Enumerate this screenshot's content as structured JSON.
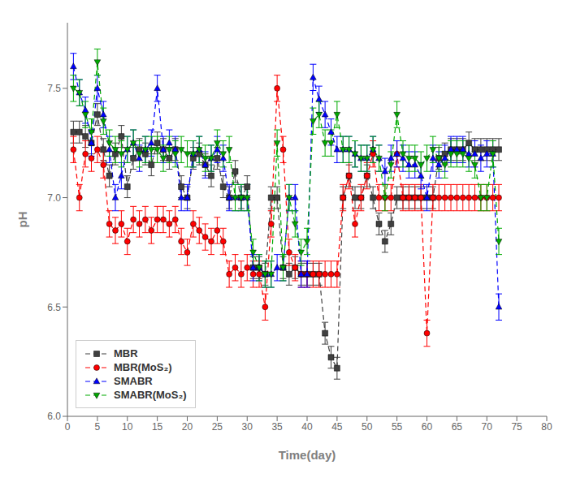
{
  "chart_data": {
    "type": "line",
    "xlabel": "Time(day)",
    "ylabel": "pH",
    "xlim": [
      0,
      80
    ],
    "ylim": [
      6.0,
      7.8
    ],
    "xticks": [
      0,
      5,
      10,
      15,
      20,
      25,
      30,
      35,
      40,
      45,
      50,
      55,
      60,
      65,
      70,
      75,
      80
    ],
    "yticks": [
      {
        "value": 6.0,
        "label": "6.0"
      },
      6.5,
      {
        "value": 7.0,
        "label": "7.0"
      },
      7.5
    ],
    "grid": false,
    "legend": "lower left",
    "x": [
      1,
      2,
      3,
      4,
      5,
      6,
      7,
      8,
      9,
      10,
      11,
      12,
      13,
      14,
      15,
      16,
      17,
      18,
      19,
      20,
      21,
      22,
      23,
      24,
      25,
      26,
      27,
      28,
      29,
      30,
      31,
      32,
      33,
      34,
      35,
      36,
      37,
      38,
      39,
      40,
      41,
      42,
      43,
      44,
      45,
      46,
      47,
      48,
      49,
      50,
      51,
      52,
      53,
      54,
      55,
      56,
      57,
      58,
      59,
      60,
      61,
      62,
      63,
      64,
      65,
      66,
      67,
      68,
      69,
      70,
      71,
      72
    ],
    "series": [
      {
        "name": "MBR",
        "color": "#404040",
        "marker": "square",
        "line_style": "dashed",
        "values": [
          7.3,
          7.3,
          7.28,
          7.25,
          7.38,
          7.22,
          7.1,
          7.2,
          7.28,
          7.05,
          7.18,
          7.22,
          7.2,
          7.15,
          7.25,
          7.22,
          7.18,
          7.22,
          7.05,
          7.0,
          7.18,
          7.2,
          7.15,
          7.1,
          7.18,
          7.05,
          7.0,
          7.12,
          7.0,
          7.05,
          6.68,
          6.68,
          6.65,
          7.0,
          7.0,
          6.68,
          6.65,
          6.68,
          6.65,
          6.65,
          6.65,
          6.65,
          6.38,
          6.27,
          6.22,
          7.0,
          7.1,
          7.0,
          7.0,
          7.1,
          7.0,
          6.88,
          6.8,
          6.88,
          7.0,
          7.0,
          7.0,
          7.0,
          7.0,
          7.0,
          7.0,
          7.18,
          7.2,
          7.22,
          7.22,
          7.22,
          7.25,
          7.22,
          7.22,
          7.22,
          7.22,
          7.22
        ],
        "yerr": [
          0.05,
          0.05,
          0.05,
          0.05,
          0.05,
          0.05,
          0.05,
          0.05,
          0.05,
          0.05,
          0.05,
          0.05,
          0.05,
          0.05,
          0.05,
          0.05,
          0.05,
          0.05,
          0.05,
          0.05,
          0.05,
          0.05,
          0.05,
          0.05,
          0.05,
          0.05,
          0.05,
          0.05,
          0.05,
          0.05,
          0.05,
          0.05,
          0.05,
          0.05,
          0.05,
          0.05,
          0.05,
          0.05,
          0.05,
          0.05,
          0.05,
          0.05,
          0.05,
          0.05,
          0.05,
          0.05,
          0.05,
          0.05,
          0.05,
          0.05,
          0.05,
          0.05,
          0.05,
          0.05,
          0.05,
          0.05,
          0.05,
          0.05,
          0.05,
          0.05,
          0.05,
          0.05,
          0.05,
          0.05,
          0.05,
          0.05,
          0.05,
          0.05,
          0.05,
          0.05,
          0.05,
          0.05
        ]
      },
      {
        "name": "MBR(MoS₂)",
        "color": "#ff0000",
        "marker": "circle",
        "line_style": "dashed",
        "values": [
          7.22,
          7.0,
          7.2,
          7.18,
          7.22,
          7.15,
          6.88,
          6.85,
          6.88,
          6.8,
          6.9,
          6.88,
          6.9,
          6.85,
          6.9,
          6.9,
          6.88,
          6.9,
          6.8,
          6.75,
          6.88,
          6.85,
          6.82,
          6.8,
          6.85,
          6.8,
          6.65,
          6.68,
          6.65,
          6.68,
          6.65,
          6.65,
          6.5,
          6.88,
          7.5,
          7.22,
          6.75,
          6.68,
          6.65,
          6.65,
          6.65,
          6.65,
          6.65,
          6.65,
          6.65,
          7.0,
          7.1,
          6.88,
          7.0,
          7.1,
          7.2,
          7.0,
          7.0,
          7.0,
          7.2,
          7.0,
          7.0,
          7.0,
          7.0,
          6.38,
          7.0,
          7.0,
          7.0,
          7.0,
          7.0,
          7.0,
          7.0,
          7.0,
          7.0,
          7.0,
          7.0,
          7.0
        ],
        "yerr": [
          0.06,
          0.06,
          0.06,
          0.06,
          0.06,
          0.06,
          0.06,
          0.06,
          0.06,
          0.06,
          0.06,
          0.06,
          0.06,
          0.06,
          0.06,
          0.06,
          0.06,
          0.06,
          0.06,
          0.06,
          0.06,
          0.06,
          0.06,
          0.06,
          0.06,
          0.06,
          0.06,
          0.06,
          0.06,
          0.06,
          0.06,
          0.06,
          0.06,
          0.06,
          0.06,
          0.06,
          0.06,
          0.06,
          0.06,
          0.06,
          0.06,
          0.06,
          0.06,
          0.06,
          0.06,
          0.06,
          0.06,
          0.06,
          0.06,
          0.06,
          0.06,
          0.06,
          0.06,
          0.06,
          0.06,
          0.06,
          0.06,
          0.06,
          0.06,
          0.06,
          0.06,
          0.06,
          0.06,
          0.06,
          0.06,
          0.06,
          0.06,
          0.06,
          0.06,
          0.06,
          0.06,
          0.06
        ]
      },
      {
        "name": "SMABR",
        "color": "#0000ff",
        "marker": "triangle-up",
        "line_style": "dashed",
        "values": [
          7.6,
          7.48,
          7.4,
          7.25,
          7.5,
          7.38,
          7.22,
          7.0,
          7.1,
          7.22,
          7.25,
          7.18,
          7.22,
          7.25,
          7.5,
          7.22,
          7.25,
          7.22,
          7.0,
          7.0,
          7.2,
          7.22,
          7.15,
          7.18,
          7.22,
          7.18,
          7.0,
          7.0,
          7.0,
          7.0,
          6.68,
          6.68,
          6.65,
          6.65,
          6.68,
          6.68,
          7.0,
          7.0,
          6.65,
          6.65,
          7.55,
          7.45,
          7.38,
          7.3,
          7.22,
          7.22,
          7.22,
          7.2,
          7.18,
          7.18,
          7.22,
          7.18,
          7.12,
          7.18,
          7.2,
          7.18,
          7.15,
          7.15,
          7.1,
          7.0,
          7.18,
          7.15,
          7.18,
          7.22,
          7.22,
          7.22,
          7.2,
          7.2,
          7.18,
          7.2,
          7.2,
          6.5
        ],
        "yerr": [
          0.06,
          0.06,
          0.06,
          0.06,
          0.06,
          0.06,
          0.06,
          0.06,
          0.06,
          0.06,
          0.06,
          0.06,
          0.06,
          0.06,
          0.06,
          0.06,
          0.06,
          0.06,
          0.06,
          0.06,
          0.06,
          0.06,
          0.06,
          0.06,
          0.06,
          0.06,
          0.06,
          0.06,
          0.06,
          0.06,
          0.06,
          0.06,
          0.06,
          0.06,
          0.06,
          0.06,
          0.06,
          0.06,
          0.06,
          0.06,
          0.06,
          0.06,
          0.06,
          0.06,
          0.06,
          0.06,
          0.06,
          0.06,
          0.06,
          0.06,
          0.06,
          0.06,
          0.06,
          0.06,
          0.06,
          0.06,
          0.06,
          0.06,
          0.06,
          0.06,
          0.06,
          0.06,
          0.06,
          0.06,
          0.06,
          0.06,
          0.06,
          0.06,
          0.06,
          0.06,
          0.06,
          0.06
        ]
      },
      {
        "name": "SMABR(MoS₂)",
        "color": "#00aa00",
        "marker": "triangle-down",
        "line_style": "dashed",
        "values": [
          7.5,
          7.48,
          7.38,
          7.3,
          7.62,
          7.35,
          7.25,
          7.22,
          7.2,
          7.22,
          7.25,
          7.2,
          7.22,
          7.22,
          7.22,
          7.18,
          7.22,
          7.2,
          7.22,
          7.2,
          7.2,
          7.22,
          7.18,
          7.18,
          7.25,
          7.2,
          7.22,
          7.0,
          7.0,
          7.0,
          6.75,
          6.68,
          6.65,
          6.65,
          7.25,
          6.68,
          7.0,
          6.88,
          6.75,
          6.8,
          7.35,
          7.38,
          7.25,
          7.25,
          7.38,
          7.22,
          7.22,
          7.2,
          7.18,
          7.18,
          7.22,
          7.18,
          7.0,
          7.15,
          7.38,
          7.2,
          7.18,
          7.18,
          7.15,
          7.18,
          7.22,
          7.18,
          7.15,
          7.2,
          7.2,
          7.2,
          7.18,
          7.15,
          7.0,
          7.0,
          7.2,
          6.8
        ],
        "yerr": [
          0.06,
          0.06,
          0.06,
          0.06,
          0.06,
          0.06,
          0.06,
          0.06,
          0.06,
          0.06,
          0.06,
          0.06,
          0.06,
          0.06,
          0.06,
          0.06,
          0.06,
          0.06,
          0.06,
          0.06,
          0.06,
          0.06,
          0.06,
          0.06,
          0.06,
          0.06,
          0.06,
          0.06,
          0.06,
          0.06,
          0.06,
          0.06,
          0.06,
          0.06,
          0.06,
          0.06,
          0.06,
          0.06,
          0.06,
          0.06,
          0.06,
          0.06,
          0.06,
          0.06,
          0.06,
          0.06,
          0.06,
          0.06,
          0.06,
          0.06,
          0.06,
          0.06,
          0.06,
          0.06,
          0.06,
          0.06,
          0.06,
          0.06,
          0.06,
          0.06,
          0.06,
          0.06,
          0.06,
          0.06,
          0.06,
          0.06,
          0.06,
          0.06,
          0.06,
          0.06,
          0.06,
          0.06
        ]
      }
    ]
  }
}
